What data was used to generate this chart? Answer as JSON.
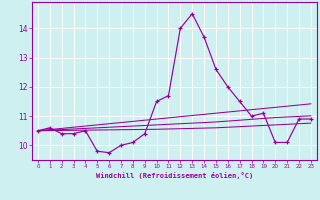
{
  "xlabel": "Windchill (Refroidissement éolien,°C)",
  "background_color": "#cef0f0",
  "line_color": "#990099",
  "grid_color": "#ffffff",
  "xlim": [
    -0.5,
    23.5
  ],
  "ylim": [
    9.5,
    14.9
  ],
  "yticks": [
    10,
    11,
    12,
    13,
    14
  ],
  "xticks": [
    0,
    1,
    2,
    3,
    4,
    5,
    6,
    7,
    8,
    9,
    10,
    11,
    12,
    13,
    14,
    15,
    16,
    17,
    18,
    19,
    20,
    21,
    22,
    23
  ],
  "series": {
    "windchill": [
      10.5,
      10.6,
      10.4,
      10.4,
      10.5,
      9.8,
      9.75,
      10.0,
      10.1,
      10.4,
      11.5,
      11.7,
      14.0,
      14.5,
      13.7,
      12.6,
      12.0,
      11.5,
      11.0,
      11.1,
      10.1,
      10.1,
      10.9,
      10.9
    ],
    "temp1": [
      10.5,
      10.54,
      10.58,
      10.62,
      10.66,
      10.7,
      10.74,
      10.78,
      10.82,
      10.86,
      10.9,
      10.94,
      10.98,
      11.02,
      11.06,
      11.1,
      11.14,
      11.18,
      11.22,
      11.26,
      11.3,
      11.34,
      11.38,
      11.42
    ],
    "temp2": [
      10.5,
      10.52,
      10.54,
      10.56,
      10.58,
      10.6,
      10.62,
      10.64,
      10.66,
      10.68,
      10.7,
      10.72,
      10.74,
      10.76,
      10.78,
      10.8,
      10.83,
      10.86,
      10.89,
      10.92,
      10.95,
      10.97,
      10.99,
      11.01
    ],
    "temp3": [
      10.5,
      10.505,
      10.51,
      10.515,
      10.52,
      10.525,
      10.53,
      10.535,
      10.54,
      10.545,
      10.55,
      10.56,
      10.57,
      10.58,
      10.59,
      10.6,
      10.62,
      10.64,
      10.66,
      10.68,
      10.7,
      10.72,
      10.74,
      10.76
    ]
  }
}
